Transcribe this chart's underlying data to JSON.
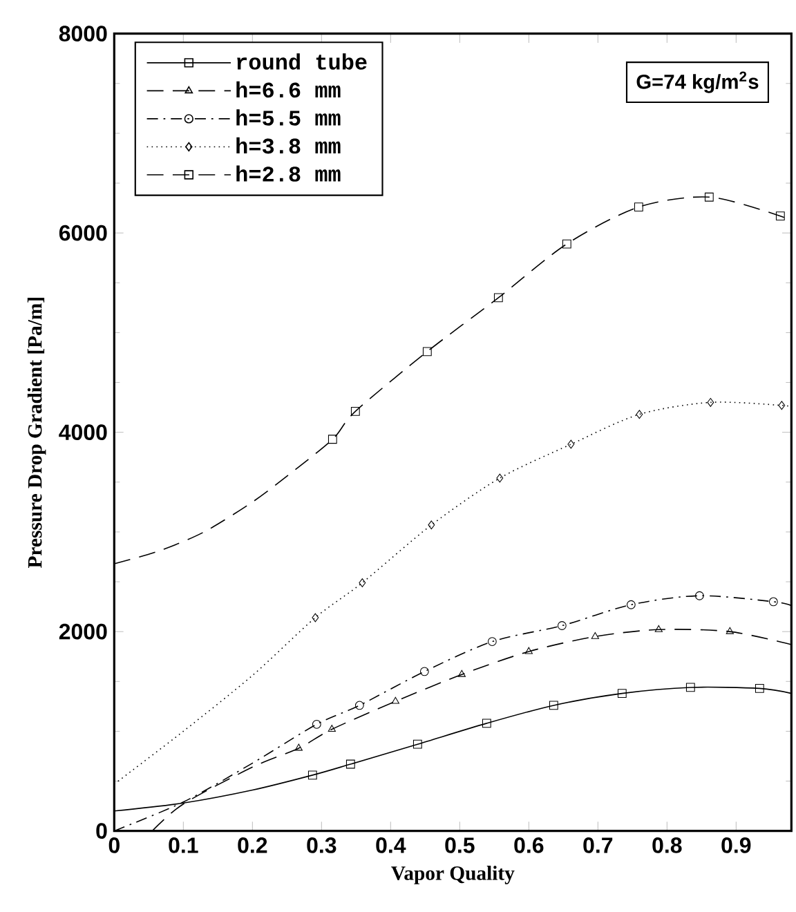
{
  "chart_data": {
    "type": "line",
    "xlabel": "Vapor Quality",
    "ylabel": "Pressure Drop Gradient [Pa/m]",
    "annotations": [
      "G=74 kg/m$^{2}$s"
    ],
    "xlim": [
      0,
      0.98
    ],
    "ylim": [
      0,
      8000
    ],
    "xticks": [
      0,
      0.1,
      0.2,
      0.3,
      0.4,
      0.5,
      0.6,
      0.7,
      0.8,
      0.9
    ],
    "yticks": [
      0,
      2000,
      4000,
      6000,
      8000
    ],
    "grid": false,
    "legend": "top left",
    "series": [
      {
        "name": "round tube",
        "color": "#000000",
        "line_style": "solid",
        "x": [
          0,
          0.1,
          0.2,
          0.287,
          0.342,
          0.439,
          0.539,
          0.636,
          0.735,
          0.834,
          0.934,
          0.98
        ],
        "values": [
          200,
          280,
          410,
          560,
          670,
          870,
          1080,
          1260,
          1380,
          1440,
          1430,
          1380
        ]
      },
      {
        "type": "scatter",
        "color": "#000000",
        "marker": "square",
        "x": [
          0.287,
          0.342,
          0.439,
          0.539,
          0.636,
          0.735,
          0.834,
          0.934
        ],
        "values": [
          560,
          670,
          870,
          1080,
          1260,
          1380,
          1440,
          1430
        ]
      },
      {
        "name": "h=6.6 mm",
        "color": "#000000",
        "line_style": "dashed",
        "x": [
          0.055,
          0.1,
          0.2,
          0.267,
          0.315,
          0.407,
          0.503,
          0.6,
          0.696,
          0.788,
          0.891,
          0.98
        ],
        "values": [
          0,
          270,
          640,
          830,
          1020,
          1300,
          1570,
          1800,
          1950,
          2020,
          2000,
          1870
        ]
      },
      {
        "type": "scatter",
        "color": "#000000",
        "marker": "triangle",
        "x": [
          0.267,
          0.315,
          0.407,
          0.503,
          0.6,
          0.696,
          0.788,
          0.891
        ],
        "values": [
          830,
          1020,
          1300,
          1570,
          1800,
          1950,
          2020,
          2000
        ]
      },
      {
        "name": "h=5.5 mm",
        "color": "#000000",
        "line_style": "dashdot",
        "x": [
          0,
          0.1,
          0.2,
          0.293,
          0.355,
          0.449,
          0.547,
          0.648,
          0.748,
          0.847,
          0.954,
          0.98
        ],
        "values": [
          0,
          290,
          680,
          1070,
          1260,
          1600,
          1900,
          2060,
          2270,
          2360,
          2300,
          2260
        ]
      },
      {
        "type": "scatter",
        "color": "#000000",
        "marker": "circle",
        "x": [
          0.293,
          0.355,
          0.449,
          0.547,
          0.648,
          0.748,
          0.847,
          0.954
        ],
        "values": [
          1070,
          1260,
          1600,
          1900,
          2060,
          2270,
          2360,
          2300
        ]
      },
      {
        "name": "h=3.8 mm",
        "color": "#000000",
        "line_style": "dotted",
        "x": [
          0,
          0.1,
          0.2,
          0.291,
          0.359,
          0.459,
          0.558,
          0.661,
          0.76,
          0.863,
          0.966,
          0.98
        ],
        "values": [
          470,
          1000,
          1560,
          2140,
          2490,
          3070,
          3540,
          3880,
          4180,
          4300,
          4270,
          4250
        ]
      },
      {
        "type": "scatter",
        "color": "#000000",
        "marker": "diamond",
        "x": [
          0.291,
          0.359,
          0.459,
          0.558,
          0.661,
          0.76,
          0.863,
          0.966
        ],
        "values": [
          2140,
          2490,
          3070,
          3540,
          3880,
          4180,
          4300,
          4270
        ]
      },
      {
        "name": "h=2.8 mm",
        "color": "#000000",
        "line_style": "dashed",
        "x": [
          0,
          0.065,
          0.13,
          0.2,
          0.25,
          0.316,
          0.349,
          0.453,
          0.556,
          0.655,
          0.759,
          0.861,
          0.964,
          0.98
        ],
        "values": [
          2680,
          2810,
          3000,
          3300,
          3560,
          3930,
          4210,
          4810,
          5350,
          5890,
          6260,
          6360,
          6170,
          6100
        ]
      },
      {
        "type": "scatter",
        "color": "#000000",
        "marker": "square",
        "x": [
          0.316,
          0.349,
          0.453,
          0.556,
          0.655,
          0.759,
          0.861,
          0.964
        ],
        "values": [
          3930,
          4210,
          4810,
          5350,
          5890,
          6260,
          6360,
          6170
        ]
      }
    ]
  }
}
